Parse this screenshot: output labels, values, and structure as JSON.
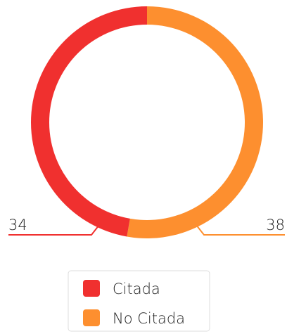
{
  "chart_data": {
    "type": "donut",
    "categories": [
      "Citada",
      "No Citada"
    ],
    "values": [
      34,
      38
    ],
    "colors": [
      "#f0302f",
      "#fd8f2f"
    ],
    "legend": "bottom"
  }
}
